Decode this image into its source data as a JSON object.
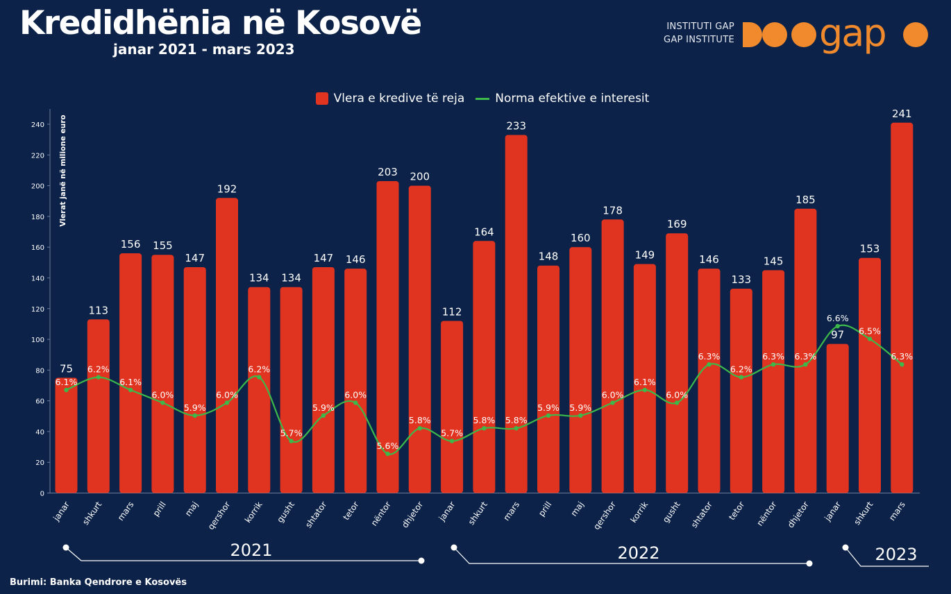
{
  "header": {
    "title": "Kredidhënia në Kosovë",
    "subtitle": "janar 2021 - mars 2023"
  },
  "logo": {
    "line1": "INSTITUTI GAP",
    "line2": "GAP INSTITUTE",
    "wordmark": "gap",
    "color": "#f08a2c"
  },
  "source": "Burimi: Banka Qendrore e Kosovës",
  "colors": {
    "background": "#0c2248",
    "bar": "#e03420",
    "line": "#3cb94a",
    "text": "#ffffff"
  },
  "chart_data": {
    "type": "bar",
    "ylabel": "Vlerat janë në milione euro",
    "ylim": [
      0,
      250
    ],
    "yticks": [
      0,
      20,
      40,
      60,
      80,
      100,
      120,
      140,
      160,
      180,
      200,
      220,
      240
    ],
    "legend_position": "top-center",
    "grid": false,
    "categories": [
      "janar",
      "shkurt",
      "mars",
      "prill",
      "maj",
      "qershor",
      "korrik",
      "gusht",
      "shtator",
      "tetor",
      "nëntor",
      "dhjetor",
      "janar",
      "shkurt",
      "mars",
      "prill",
      "maj",
      "qershor",
      "korrik",
      "gusht",
      "shtator",
      "tetor",
      "nëntor",
      "dhjetor",
      "janar",
      "shkurt",
      "mars"
    ],
    "series": [
      {
        "name": "Vlera e kredive të reja",
        "type": "bar",
        "values": [
          75,
          113,
          156,
          155,
          147,
          192,
          134,
          134,
          147,
          146,
          203,
          200,
          112,
          164,
          233,
          148,
          160,
          178,
          149,
          169,
          146,
          133,
          145,
          185,
          97,
          153,
          241
        ]
      },
      {
        "name": "Norma efektive e interesit",
        "type": "line",
        "values": [
          6.1,
          6.2,
          6.1,
          6.0,
          5.9,
          6.0,
          6.2,
          5.7,
          5.9,
          6.0,
          5.6,
          5.8,
          5.7,
          5.8,
          5.8,
          5.9,
          5.9,
          6.0,
          6.1,
          6.0,
          6.3,
          6.2,
          6.3,
          6.3,
          6.6,
          6.5,
          6.3
        ],
        "labels": [
          "6.1%",
          "6.2%",
          "6.1%",
          "6.0%",
          "5.9%",
          "6.0%",
          "6.2%",
          "5.7%",
          "5.9%",
          "6.0%",
          "5.6%",
          "5.8%",
          "5.7%",
          "5.8%",
          "5.8%",
          "5.9%",
          "5.9%",
          "6.0%",
          "6.1%",
          "6.0%",
          "6.3%",
          "6.2%",
          "6.3%",
          "6.3%",
          "6.6%",
          "6.5%",
          "6.3%"
        ]
      }
    ],
    "year_groups": [
      {
        "label": "2021",
        "start": 0,
        "end": 11
      },
      {
        "label": "2022",
        "start": 12,
        "end": 23
      },
      {
        "label": "2023",
        "start": 24,
        "end": 26
      }
    ]
  }
}
